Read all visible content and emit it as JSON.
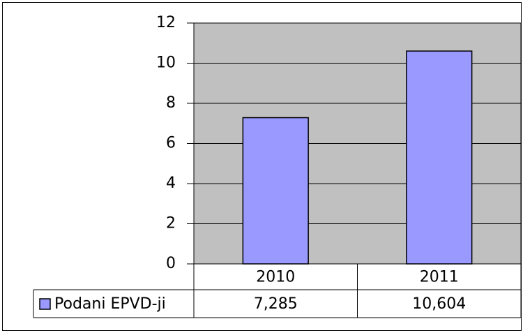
{
  "chart_data": {
    "type": "bar",
    "categories": [
      "2010",
      "2011"
    ],
    "series": [
      {
        "name": "Podani EPVD-ji",
        "color": "#9999ff",
        "values": [
          7.285,
          10.604
        ],
        "value_labels": [
          "7,285",
          "10,604"
        ]
      }
    ],
    "ylim": [
      0,
      12
    ],
    "yticks": [
      0,
      2,
      4,
      6,
      8,
      10,
      12
    ],
    "grid": true,
    "plot_background": "#c0c0c0"
  }
}
